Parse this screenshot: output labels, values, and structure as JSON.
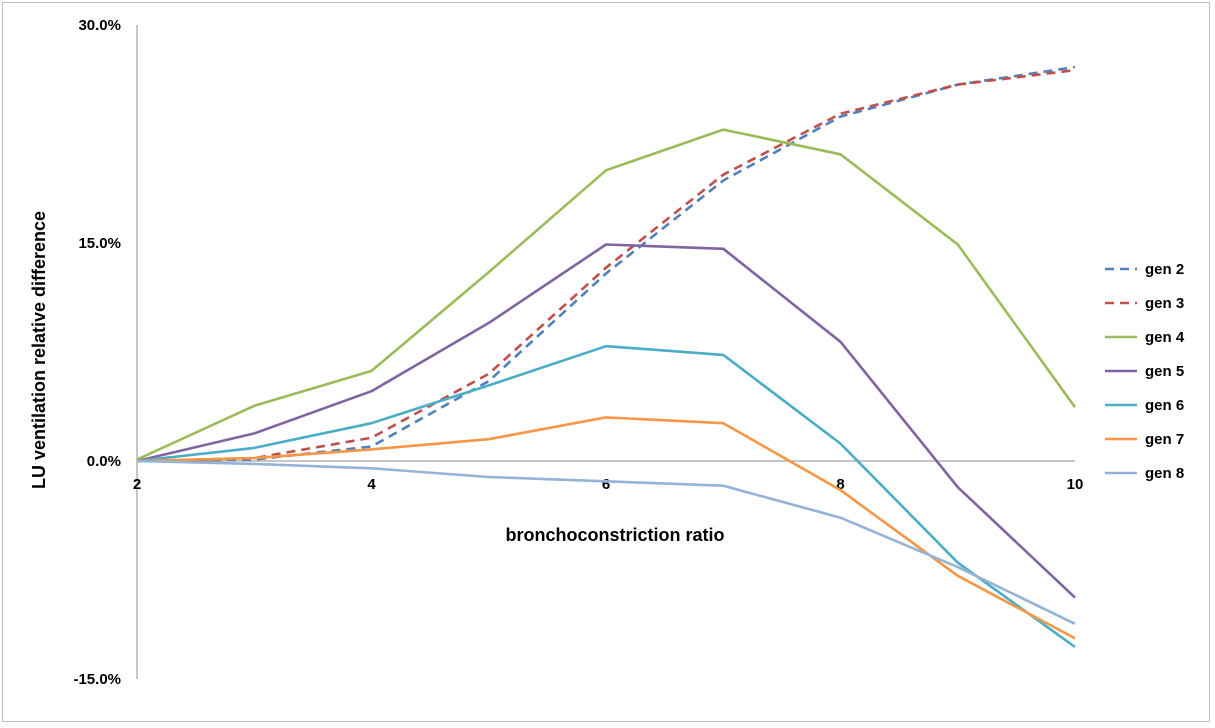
{
  "chart_data": {
    "type": "line",
    "title": "",
    "xlabel": "bronchoconstriction ratio",
    "ylabel": "LU ventilation relative difference",
    "x": [
      2,
      3,
      4,
      5,
      6,
      7,
      8,
      9,
      10
    ],
    "xlim": [
      2,
      10
    ],
    "x_ticks": [
      2,
      4,
      6,
      8,
      10
    ],
    "x_tick_labels": [
      "2",
      "4",
      "6",
      "8",
      "10"
    ],
    "ylim": [
      -15,
      30
    ],
    "y_ticks": [
      -15,
      0,
      15,
      30
    ],
    "y_tick_labels": [
      "-15.0%",
      "0.0%",
      "15.0%",
      "30.0%"
    ],
    "y_unit": "percent",
    "grid": false,
    "legend_position": "right",
    "series": [
      {
        "name": "gen 2",
        "color": "#4F81BD",
        "dashed": true,
        "values": [
          0,
          0.1,
          1.0,
          5.5,
          12.9,
          19.3,
          23.7,
          25.9,
          27.1
        ]
      },
      {
        "name": "gen 3",
        "color": "#C0504D",
        "dashed": true,
        "values": [
          0,
          0.2,
          1.6,
          6.0,
          13.3,
          19.7,
          23.9,
          25.9,
          26.9
        ]
      },
      {
        "name": "gen 4",
        "color": "#9BBB59",
        "dashed": false,
        "values": [
          0.1,
          3.8,
          6.2,
          13.0,
          20.0,
          22.8,
          21.1,
          14.9,
          3.7
        ]
      },
      {
        "name": "gen 5",
        "color": "#8064A2",
        "dashed": false,
        "values": [
          0,
          1.9,
          4.8,
          9.5,
          14.9,
          14.6,
          8.2,
          -1.8,
          -9.4
        ]
      },
      {
        "name": "gen 6",
        "color": "#4BACC6",
        "dashed": false,
        "values": [
          0,
          0.9,
          2.6,
          5.2,
          7.9,
          7.3,
          1.2,
          -7.0,
          -12.8
        ]
      },
      {
        "name": "gen 7",
        "color": "#F79646",
        "dashed": false,
        "values": [
          0,
          0.2,
          0.8,
          1.5,
          3.0,
          2.6,
          -2.0,
          -7.9,
          -12.2
        ]
      },
      {
        "name": "gen 8",
        "color": "#95B3D7",
        "dashed": false,
        "values": [
          0,
          -0.2,
          -0.5,
          -1.1,
          -1.4,
          -1.7,
          -3.9,
          -7.3,
          -11.2
        ]
      }
    ]
  }
}
